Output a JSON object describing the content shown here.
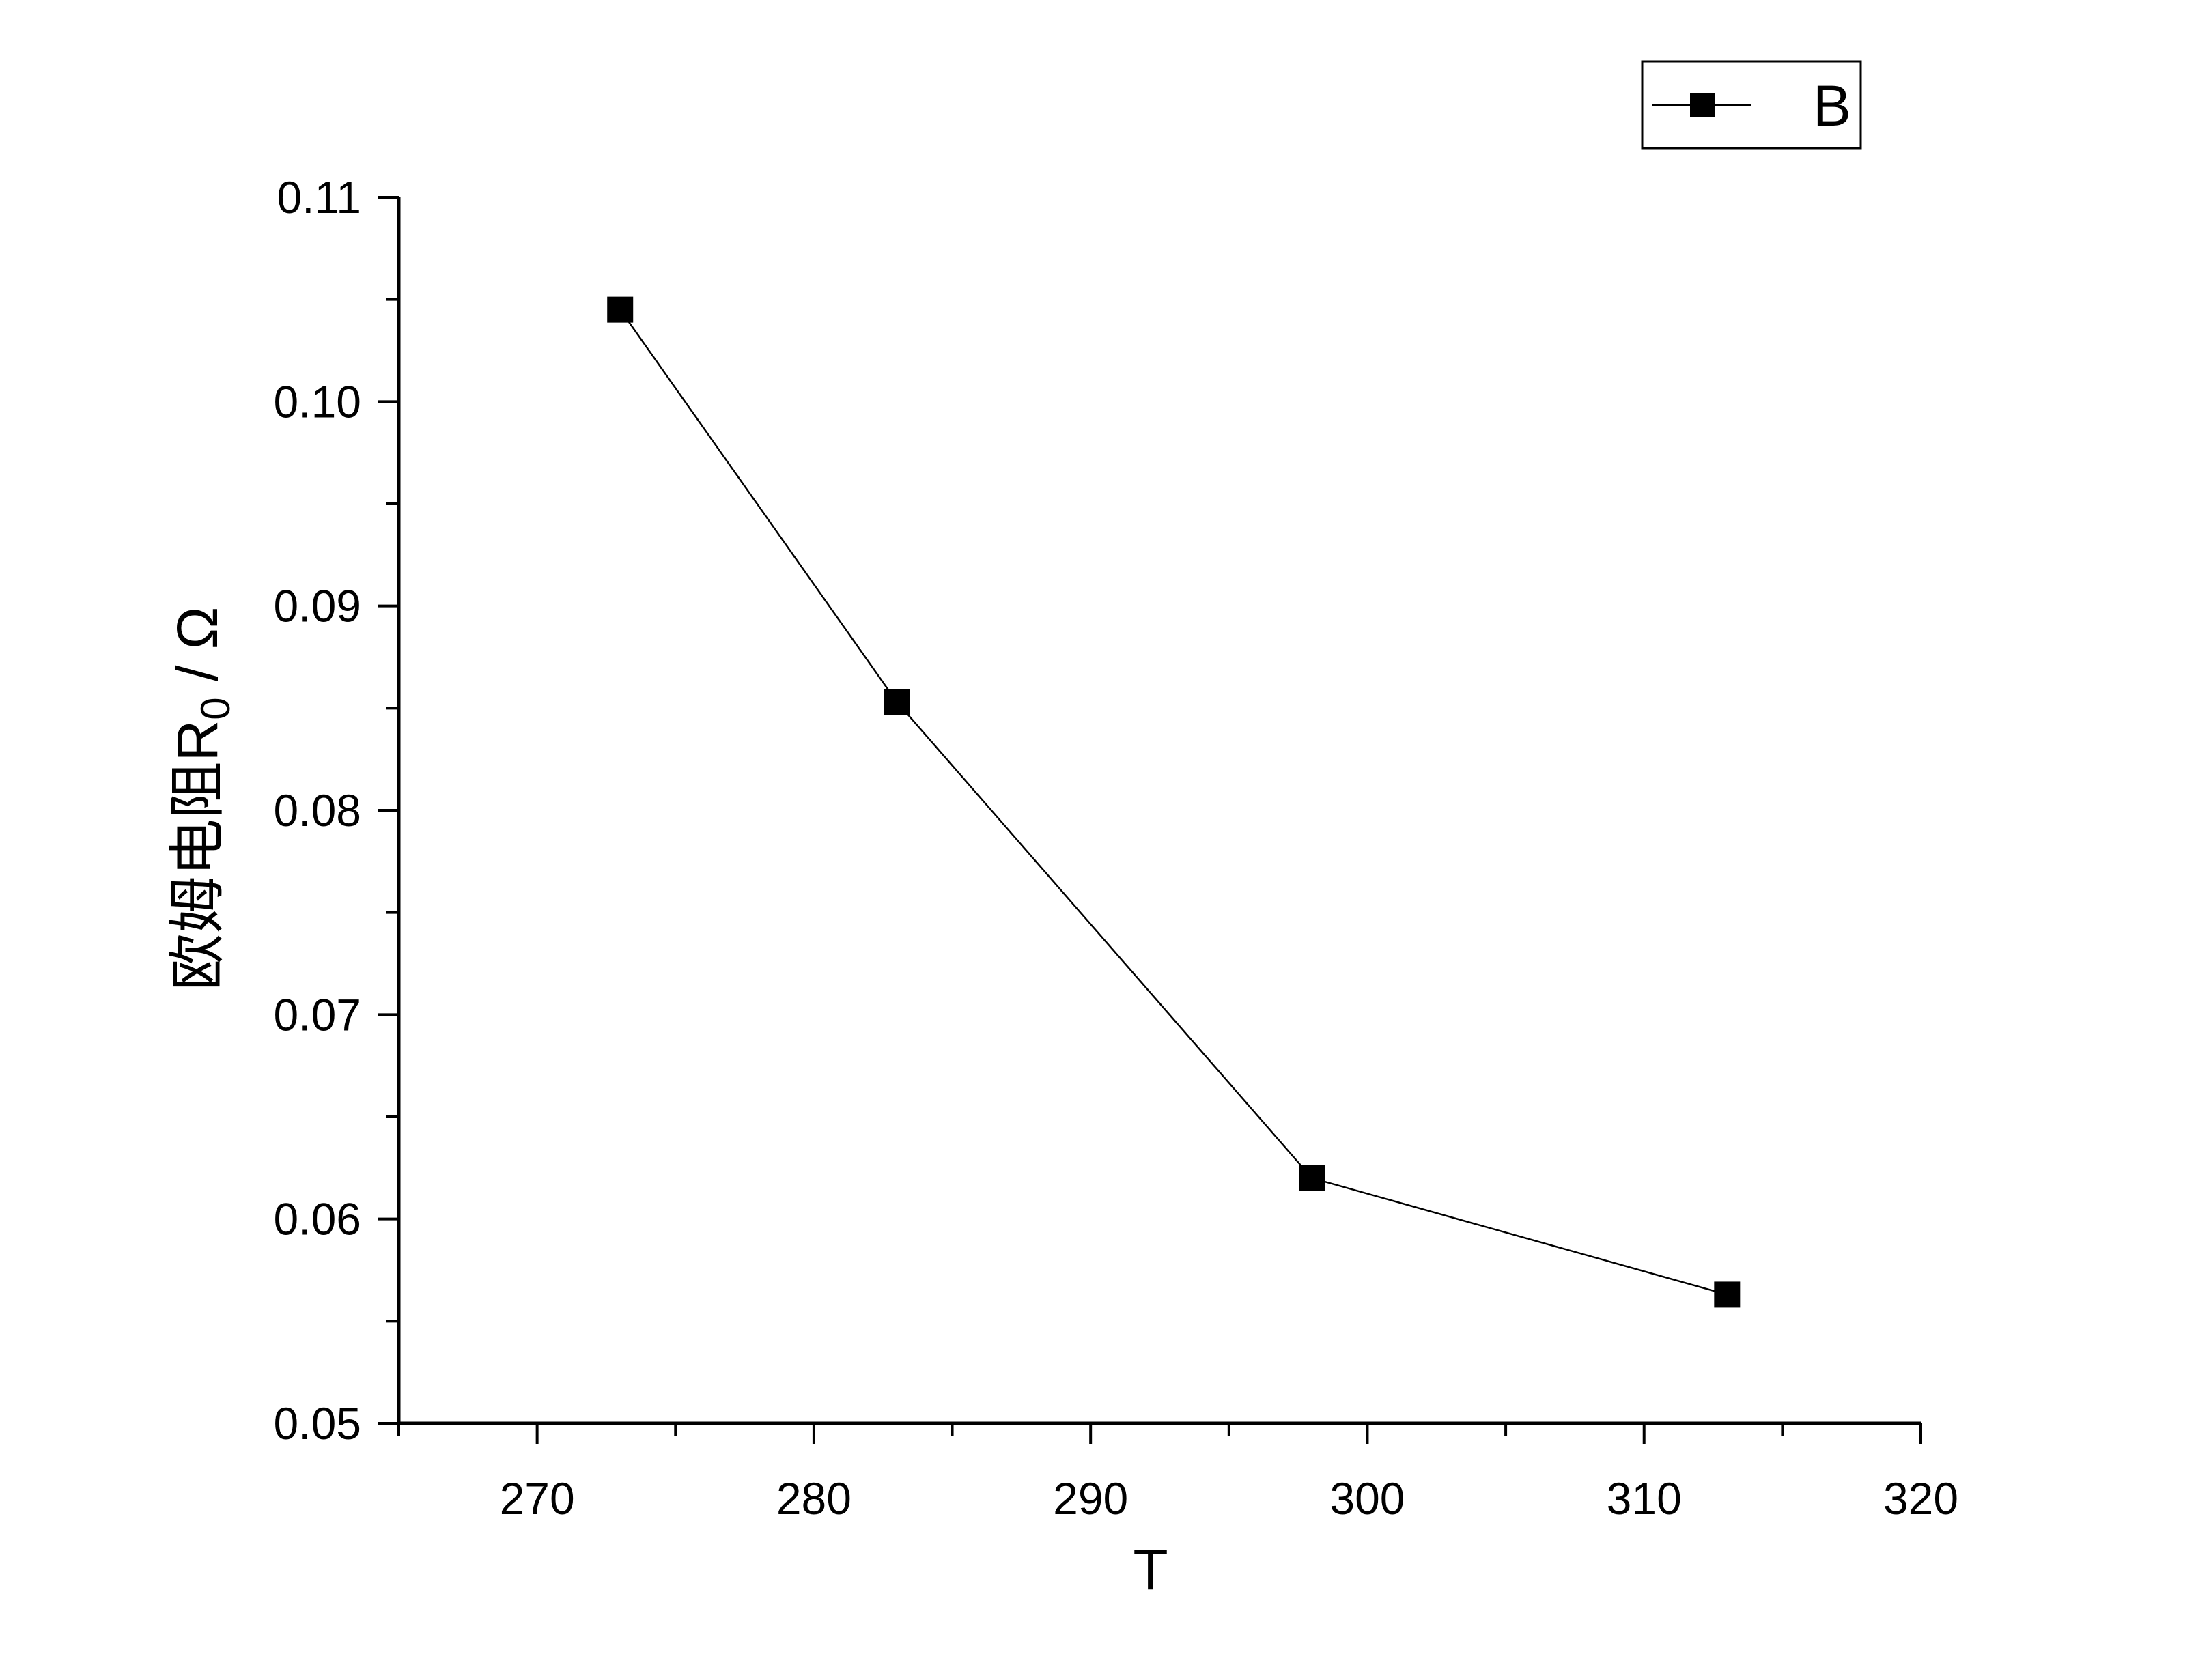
{
  "chart_data": {
    "type": "line",
    "title": "",
    "xlabel": "T",
    "ylabel": {
      "main": "欧姆电阻R",
      "subscript": "0",
      "suffix": " / Ω"
    },
    "xlim": [
      265,
      320
    ],
    "ylim": [
      0.05,
      0.11
    ],
    "x_ticks": [
      "270",
      "280",
      "290",
      "300",
      "310",
      "320"
    ],
    "y_ticks": [
      "0.05",
      "0.06",
      "0.07",
      "0.08",
      "0.09",
      "0.10",
      "0.11"
    ],
    "grid": false,
    "legend_position": "top-right",
    "series": [
      {
        "name": "B",
        "marker": "square",
        "color": "#000000",
        "x": [
          273,
          283,
          298,
          313
        ],
        "y": [
          0.1045,
          0.0853,
          0.062,
          0.0563
        ]
      }
    ]
  }
}
